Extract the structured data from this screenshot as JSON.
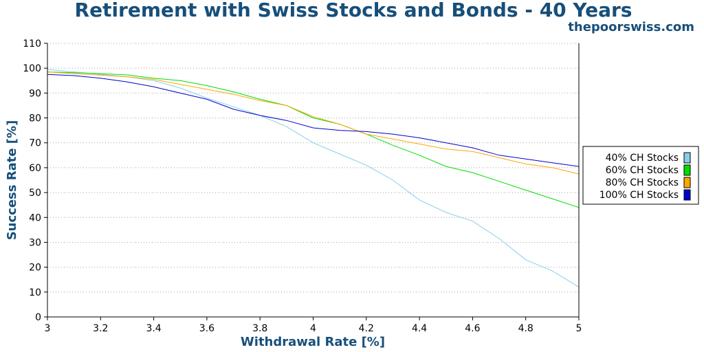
{
  "title": "Retirement with Swiss Stocks and Bonds - 40 Years",
  "watermark": "thepoorswiss.com",
  "chart_data": {
    "type": "line",
    "title": "Retirement with Swiss Stocks and Bonds - 40 Years",
    "xlabel": "Withdrawal Rate [%]",
    "ylabel": "Success Rate [%]",
    "xlim": [
      3,
      5
    ],
    "ylim": [
      0,
      110
    ],
    "x_ticks": [
      "3",
      "3.2",
      "3.4",
      "3.6",
      "3.8",
      "4",
      "4.2",
      "4.4",
      "4.6",
      "4.8",
      "5"
    ],
    "y_ticks": [
      "0",
      "10",
      "20",
      "30",
      "40",
      "50",
      "60",
      "70",
      "80",
      "90",
      "100",
      "110"
    ],
    "grid": "horizontal dotted",
    "legend_position": "right",
    "x": [
      3.0,
      3.1,
      3.2,
      3.3,
      3.4,
      3.5,
      3.6,
      3.7,
      3.8,
      3.9,
      4.0,
      4.1,
      4.2,
      4.3,
      4.4,
      4.5,
      4.6,
      4.7,
      4.8,
      4.9,
      5.0
    ],
    "series": [
      {
        "name": "40% CH Stocks",
        "color": "#87ceeb",
        "values": [
          99.5,
          98.5,
          97.5,
          96.5,
          95,
          92,
          88,
          84.5,
          81,
          76.5,
          70,
          65.5,
          61,
          55,
          47,
          42,
          38.5,
          31.5,
          23,
          18.5,
          12
        ]
      },
      {
        "name": "60% CH Stocks",
        "color": "#00dd00",
        "values": [
          98.5,
          98.2,
          97.8,
          97.3,
          96,
          95,
          93,
          90.5,
          87.5,
          85,
          80,
          77.5,
          73.5,
          69,
          65,
          60.5,
          58,
          54.5,
          51,
          47.5,
          44
        ]
      },
      {
        "name": "80% CH Stocks",
        "color": "#ffa500",
        "values": [
          98.5,
          97.8,
          97.2,
          96.5,
          95.5,
          93.5,
          91.5,
          89.5,
          87,
          85,
          80.5,
          77.5,
          73.5,
          71.5,
          69.5,
          67.5,
          66.5,
          64,
          61.5,
          60,
          57.5
        ]
      },
      {
        "name": "100% CH Stocks",
        "color": "#0000cd",
        "values": [
          97.5,
          97,
          96,
          94.5,
          92.5,
          90,
          87.5,
          83.5,
          81,
          79,
          76,
          75,
          74.5,
          73.5,
          72,
          70,
          68,
          65,
          63.5,
          62,
          60.5
        ]
      }
    ]
  }
}
